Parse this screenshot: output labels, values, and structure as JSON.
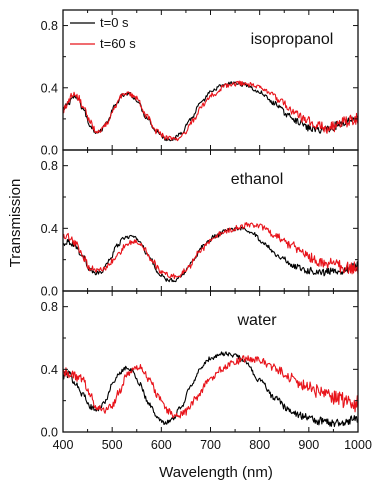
{
  "chart_data": {
    "type": "line",
    "x_label": "Wavelength (nm)",
    "y_label": "Transmission",
    "xlim": [
      400,
      1000
    ],
    "ylim": [
      0.0,
      0.9
    ],
    "x_ticks": [
      "400",
      "500",
      "600",
      "700",
      "800",
      "900",
      "1000"
    ],
    "y_ticks": [
      "0.0",
      "0.4",
      "0.8"
    ],
    "legend": {
      "position": "top-left of top panel",
      "entries": [
        {
          "label": "t=0 s",
          "color": "#000000"
        },
        {
          "label": "t=60 s",
          "color": "#e8141b"
        }
      ]
    },
    "panels": [
      {
        "title": "isopropanol",
        "series": [
          {
            "name": "t=0 s",
            "color": "#000000",
            "noise": 0.012,
            "points": [
              [
                400,
                0.25
              ],
              [
                410,
                0.3
              ],
              [
                420,
                0.34
              ],
              [
                430,
                0.33
              ],
              [
                440,
                0.27
              ],
              [
                455,
                0.16
              ],
              [
                465,
                0.12
              ],
              [
                475,
                0.12
              ],
              [
                490,
                0.18
              ],
              [
                505,
                0.28
              ],
              [
                520,
                0.35
              ],
              [
                535,
                0.36
              ],
              [
                550,
                0.32
              ],
              [
                570,
                0.21
              ],
              [
                590,
                0.12
              ],
              [
                610,
                0.07
              ],
              [
                625,
                0.07
              ],
              [
                640,
                0.11
              ],
              [
                660,
                0.2
              ],
              [
                680,
                0.3
              ],
              [
                700,
                0.37
              ],
              [
                720,
                0.41
              ],
              [
                745,
                0.43
              ],
              [
                770,
                0.42
              ],
              [
                800,
                0.37
              ],
              [
                830,
                0.3
              ],
              [
                860,
                0.22
              ],
              [
                880,
                0.18
              ],
              [
                900,
                0.14
              ],
              [
                920,
                0.13
              ],
              [
                940,
                0.14
              ],
              [
                960,
                0.16
              ],
              [
                980,
                0.19
              ],
              [
                1000,
                0.21
              ]
            ]
          },
          {
            "name": "t=60 s",
            "color": "#e8141b",
            "noise": 0.016,
            "points": [
              [
                400,
                0.24
              ],
              [
                410,
                0.31
              ],
              [
                420,
                0.35
              ],
              [
                430,
                0.34
              ],
              [
                440,
                0.28
              ],
              [
                455,
                0.18
              ],
              [
                465,
                0.13
              ],
              [
                475,
                0.12
              ],
              [
                490,
                0.17
              ],
              [
                505,
                0.27
              ],
              [
                520,
                0.35
              ],
              [
                535,
                0.36
              ],
              [
                550,
                0.33
              ],
              [
                570,
                0.22
              ],
              [
                590,
                0.12
              ],
              [
                610,
                0.08
              ],
              [
                628,
                0.07
              ],
              [
                645,
                0.1
              ],
              [
                665,
                0.19
              ],
              [
                685,
                0.29
              ],
              [
                705,
                0.36
              ],
              [
                730,
                0.41
              ],
              [
                760,
                0.43
              ],
              [
                785,
                0.42
              ],
              [
                815,
                0.38
              ],
              [
                845,
                0.31
              ],
              [
                870,
                0.24
              ],
              [
                895,
                0.19
              ],
              [
                915,
                0.16
              ],
              [
                935,
                0.14
              ],
              [
                955,
                0.15
              ],
              [
                975,
                0.18
              ],
              [
                1000,
                0.2
              ]
            ]
          }
        ]
      },
      {
        "title": "ethanol",
        "series": [
          {
            "name": "t=0 s",
            "color": "#000000",
            "noise": 0.012,
            "points": [
              [
                400,
                0.3
              ],
              [
                410,
                0.32
              ],
              [
                425,
                0.29
              ],
              [
                440,
                0.22
              ],
              [
                455,
                0.14
              ],
              [
                465,
                0.11
              ],
              [
                478,
                0.12
              ],
              [
                495,
                0.2
              ],
              [
                510,
                0.29
              ],
              [
                525,
                0.34
              ],
              [
                540,
                0.35
              ],
              [
                555,
                0.32
              ],
              [
                575,
                0.22
              ],
              [
                595,
                0.11
              ],
              [
                612,
                0.07
              ],
              [
                628,
                0.07
              ],
              [
                645,
                0.11
              ],
              [
                665,
                0.2
              ],
              [
                685,
                0.29
              ],
              [
                710,
                0.35
              ],
              [
                735,
                0.39
              ],
              [
                760,
                0.4
              ],
              [
                785,
                0.37
              ],
              [
                810,
                0.3
              ],
              [
                840,
                0.22
              ],
              [
                870,
                0.16
              ],
              [
                900,
                0.13
              ],
              [
                930,
                0.12
              ],
              [
                960,
                0.13
              ],
              [
                985,
                0.15
              ],
              [
                1000,
                0.16
              ]
            ]
          },
          {
            "name": "t=60 s",
            "color": "#e8141b",
            "noise": 0.018,
            "points": [
              [
                400,
                0.33
              ],
              [
                410,
                0.34
              ],
              [
                425,
                0.3
              ],
              [
                440,
                0.22
              ],
              [
                455,
                0.15
              ],
              [
                470,
                0.13
              ],
              [
                485,
                0.14
              ],
              [
                500,
                0.19
              ],
              [
                515,
                0.25
              ],
              [
                530,
                0.3
              ],
              [
                545,
                0.32
              ],
              [
                560,
                0.29
              ],
              [
                580,
                0.2
              ],
              [
                600,
                0.12
              ],
              [
                620,
                0.09
              ],
              [
                637,
                0.1
              ],
              [
                655,
                0.15
              ],
              [
                675,
                0.24
              ],
              [
                700,
                0.32
              ],
              [
                725,
                0.37
              ],
              [
                750,
                0.4
              ],
              [
                775,
                0.42
              ],
              [
                800,
                0.41
              ],
              [
                830,
                0.36
              ],
              [
                860,
                0.3
              ],
              [
                890,
                0.24
              ],
              [
                920,
                0.19
              ],
              [
                950,
                0.17
              ],
              [
                975,
                0.15
              ],
              [
                1000,
                0.14
              ]
            ]
          }
        ]
      },
      {
        "title": "water",
        "series": [
          {
            "name": "t=0 s",
            "color": "#000000",
            "noise": 0.014,
            "points": [
              [
                400,
                0.36
              ],
              [
                410,
                0.37
              ],
              [
                425,
                0.32
              ],
              [
                440,
                0.24
              ],
              [
                455,
                0.16
              ],
              [
                470,
                0.14
              ],
              [
                485,
                0.19
              ],
              [
                500,
                0.3
              ],
              [
                515,
                0.38
              ],
              [
                528,
                0.41
              ],
              [
                540,
                0.39
              ],
              [
                555,
                0.31
              ],
              [
                575,
                0.18
              ],
              [
                592,
                0.09
              ],
              [
                608,
                0.06
              ],
              [
                622,
                0.08
              ],
              [
                640,
                0.16
              ],
              [
                660,
                0.29
              ],
              [
                680,
                0.41
              ],
              [
                700,
                0.47
              ],
              [
                725,
                0.5
              ],
              [
                750,
                0.49
              ],
              [
                770,
                0.45
              ],
              [
                800,
                0.33
              ],
              [
                830,
                0.22
              ],
              [
                860,
                0.14
              ],
              [
                890,
                0.1
              ],
              [
                920,
                0.07
              ],
              [
                950,
                0.06
              ],
              [
                975,
                0.07
              ],
              [
                1000,
                0.08
              ]
            ]
          },
          {
            "name": "t=60 s",
            "color": "#e8141b",
            "noise": 0.022,
            "points": [
              [
                400,
                0.39
              ],
              [
                410,
                0.38
              ],
              [
                425,
                0.36
              ],
              [
                440,
                0.33
              ],
              [
                455,
                0.24
              ],
              [
                470,
                0.15
              ],
              [
                485,
                0.14
              ],
              [
                500,
                0.17
              ],
              [
                515,
                0.26
              ],
              [
                530,
                0.36
              ],
              [
                545,
                0.41
              ],
              [
                558,
                0.41
              ],
              [
                575,
                0.34
              ],
              [
                595,
                0.22
              ],
              [
                615,
                0.13
              ],
              [
                632,
                0.1
              ],
              [
                650,
                0.13
              ],
              [
                670,
                0.21
              ],
              [
                695,
                0.32
              ],
              [
                720,
                0.4
              ],
              [
                750,
                0.45
              ],
              [
                775,
                0.47
              ],
              [
                800,
                0.46
              ],
              [
                830,
                0.41
              ],
              [
                860,
                0.35
              ],
              [
                890,
                0.3
              ],
              [
                920,
                0.26
              ],
              [
                950,
                0.22
              ],
              [
                975,
                0.2
              ],
              [
                1000,
                0.18
              ]
            ]
          }
        ]
      }
    ]
  }
}
